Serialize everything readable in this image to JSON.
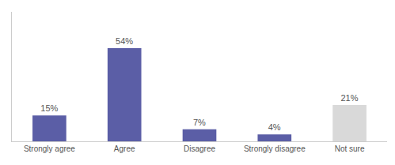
{
  "chart_data": {
    "type": "bar",
    "categories": [
      "Strongly agree",
      "Agree",
      "Disagree",
      "Strongly disagree",
      "Not sure"
    ],
    "values": [
      15,
      54,
      7,
      4,
      21
    ],
    "value_labels": [
      "15%",
      "54%",
      "7%",
      "4%",
      "21%"
    ],
    "data_labels": true,
    "colors": [
      "#5b5ea6",
      "#5b5ea6",
      "#5b5ea6",
      "#5b5ea6",
      "#d9d9d9"
    ],
    "ylim": [
      0,
      75
    ],
    "yticks": [],
    "grid": false,
    "tick_labels": "x"
  }
}
